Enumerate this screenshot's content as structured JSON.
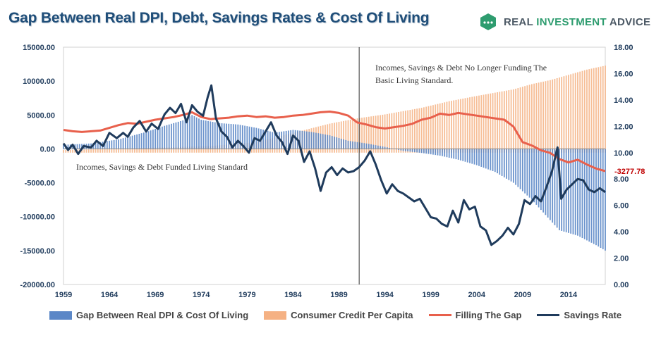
{
  "title": "Gap Between Real DPI, Debt, Savings Rates & Cost Of Living",
  "logo": {
    "text_a": "REAL ",
    "text_b": "INVESTMENT",
    "text_c": " ADVICE",
    "icon": "growth-badge-icon"
  },
  "colors": {
    "gap": "#5b87c7",
    "credit": "#f5b183",
    "fill": "#e8604c",
    "savings": "#1f3b5c",
    "title": "#1f4e79",
    "last_label": "#c00000"
  },
  "chart_data": {
    "type": "bar",
    "left_axis": {
      "min": -20000,
      "max": 15000,
      "ticks": [
        "15000.00",
        "10000.00",
        "5000.00",
        "0.00",
        "-5000.00",
        "-10000.00",
        "-15000.00",
        "-20000.00"
      ]
    },
    "right_axis": {
      "min": 0,
      "max": 18,
      "ticks": [
        "18.00",
        "16.00",
        "14.00",
        "12.00",
        "10.00",
        "8.00",
        "6.00",
        "4.00",
        "2.00",
        "0.00"
      ]
    },
    "x_axis": {
      "min": 1959,
      "max": 2018,
      "ticks": [
        "1959",
        "1964",
        "1969",
        "1974",
        "1979",
        "1984",
        "1989",
        "1994",
        "1999",
        "2004",
        "2009",
        "2014"
      ]
    },
    "divider_year": 1991.2,
    "annotations": [
      {
        "lines": [
          "Incomes, Savings & Debt No Longer Funding The",
          "Basic Living Standard."
        ]
      },
      {
        "lines": [
          "Incomes, Savings & Debt Funded Living Standard"
        ]
      }
    ],
    "last_value_label": "-3277.78",
    "series": [
      {
        "name": "Gap Between Real DPI & Cost Of Living",
        "type": "bar",
        "axis": "left",
        "points": [
          [
            1959,
            600
          ],
          [
            1962,
            800
          ],
          [
            1965,
            1400
          ],
          [
            1968,
            2500
          ],
          [
            1970,
            3400
          ],
          [
            1972,
            4200
          ],
          [
            1973,
            5000
          ],
          [
            1974,
            4300
          ],
          [
            1976,
            3800
          ],
          [
            1978,
            3600
          ],
          [
            1980,
            3100
          ],
          [
            1982,
            2400
          ],
          [
            1984,
            2800
          ],
          [
            1986,
            2500
          ],
          [
            1988,
            2000
          ],
          [
            1990,
            1200
          ],
          [
            1992,
            800
          ],
          [
            1994,
            300
          ],
          [
            1996,
            -300
          ],
          [
            1998,
            -600
          ],
          [
            2000,
            -1000
          ],
          [
            2002,
            -1600
          ],
          [
            2004,
            -2400
          ],
          [
            2006,
            -3400
          ],
          [
            2008,
            -5000
          ],
          [
            2010,
            -7500
          ],
          [
            2012,
            -10500
          ],
          [
            2013,
            -12000
          ],
          [
            2015,
            -12800
          ],
          [
            2017,
            -14200
          ],
          [
            2018,
            -15000
          ]
        ]
      },
      {
        "name": "Consumer Credit Per Capita",
        "type": "bar",
        "axis": "right",
        "points": [
          [
            1959,
            10.2
          ],
          [
            1965,
            10.3
          ],
          [
            1970,
            10.4
          ],
          [
            1975,
            10.5
          ],
          [
            1980,
            10.8
          ],
          [
            1984,
            11.5
          ],
          [
            1988,
            12.2
          ],
          [
            1991,
            12.6
          ],
          [
            1994,
            12.9
          ],
          [
            1998,
            13.4
          ],
          [
            2001,
            13.9
          ],
          [
            2004,
            14.3
          ],
          [
            2008,
            14.8
          ],
          [
            2010,
            15.2
          ],
          [
            2012,
            15.5
          ],
          [
            2014,
            15.9
          ],
          [
            2016,
            16.3
          ],
          [
            2018,
            16.6
          ]
        ]
      },
      {
        "name": "Filling The Gap",
        "type": "line",
        "axis": "left",
        "points": [
          [
            1959,
            2800
          ],
          [
            1960,
            2600
          ],
          [
            1961,
            2500
          ],
          [
            1962,
            2600
          ],
          [
            1963,
            2700
          ],
          [
            1964,
            3100
          ],
          [
            1965,
            3500
          ],
          [
            1966,
            3800
          ],
          [
            1967,
            3700
          ],
          [
            1968,
            4000
          ],
          [
            1969,
            4300
          ],
          [
            1970,
            4500
          ],
          [
            1971,
            4700
          ],
          [
            1972,
            5000
          ],
          [
            1973,
            5400
          ],
          [
            1974,
            4700
          ],
          [
            1975,
            4400
          ],
          [
            1976,
            4500
          ],
          [
            1977,
            4600
          ],
          [
            1978,
            4800
          ],
          [
            1979,
            4900
          ],
          [
            1980,
            4700
          ],
          [
            1981,
            4800
          ],
          [
            1982,
            4600
          ],
          [
            1983,
            4700
          ],
          [
            1984,
            4900
          ],
          [
            1985,
            5000
          ],
          [
            1986,
            5200
          ],
          [
            1987,
            5400
          ],
          [
            1988,
            5500
          ],
          [
            1989,
            5300
          ],
          [
            1990,
            4900
          ],
          [
            1991,
            3900
          ],
          [
            1992,
            3600
          ],
          [
            1993,
            3200
          ],
          [
            1994,
            3000
          ],
          [
            1995,
            3200
          ],
          [
            1996,
            3400
          ],
          [
            1997,
            3700
          ],
          [
            1998,
            4300
          ],
          [
            1999,
            4600
          ],
          [
            2000,
            5200
          ],
          [
            2001,
            5000
          ],
          [
            2002,
            5300
          ],
          [
            2003,
            5100
          ],
          [
            2004,
            4900
          ],
          [
            2005,
            4700
          ],
          [
            2006,
            4500
          ],
          [
            2007,
            4300
          ],
          [
            2008,
            3300
          ],
          [
            2009,
            1000
          ],
          [
            2010,
            500
          ],
          [
            2011,
            -200
          ],
          [
            2012,
            -600
          ],
          [
            2013,
            -1500
          ],
          [
            2014,
            -2000
          ],
          [
            2015,
            -1600
          ],
          [
            2016,
            -2300
          ],
          [
            2017,
            -2900
          ],
          [
            2018,
            -3277.78
          ]
        ]
      },
      {
        "name": "Savings Rate",
        "type": "line",
        "axis": "right",
        "points": [
          [
            1959,
            10.7
          ],
          [
            1959.5,
            10.2
          ],
          [
            1960,
            10.6
          ],
          [
            1960.6,
            9.9
          ],
          [
            1961.2,
            10.5
          ],
          [
            1962,
            10.4
          ],
          [
            1962.6,
            10.9
          ],
          [
            1963.3,
            10.5
          ],
          [
            1964,
            11.5
          ],
          [
            1964.8,
            11.1
          ],
          [
            1965.5,
            11.5
          ],
          [
            1966,
            11.2
          ],
          [
            1966.6,
            11.9
          ],
          [
            1967.3,
            12.4
          ],
          [
            1968,
            11.6
          ],
          [
            1968.6,
            12.2
          ],
          [
            1969.3,
            11.8
          ],
          [
            1970,
            12.9
          ],
          [
            1970.6,
            13.4
          ],
          [
            1971.2,
            13.0
          ],
          [
            1971.8,
            13.7
          ],
          [
            1972.4,
            12.3
          ],
          [
            1973,
            13.6
          ],
          [
            1973.6,
            13.1
          ],
          [
            1974.2,
            12.8
          ],
          [
            1974.7,
            14.2
          ],
          [
            1975.1,
            15.1
          ],
          [
            1975.6,
            12.6
          ],
          [
            1976.2,
            11.6
          ],
          [
            1976.8,
            11.2
          ],
          [
            1977.4,
            10.4
          ],
          [
            1978,
            10.9
          ],
          [
            1978.6,
            10.5
          ],
          [
            1979.2,
            10.0
          ],
          [
            1979.8,
            11.1
          ],
          [
            1980.4,
            10.9
          ],
          [
            1981,
            11.6
          ],
          [
            1981.6,
            12.3
          ],
          [
            1982.2,
            11.3
          ],
          [
            1982.8,
            10.8
          ],
          [
            1983.4,
            9.9
          ],
          [
            1984,
            11.3
          ],
          [
            1984.6,
            10.9
          ],
          [
            1985.2,
            9.3
          ],
          [
            1985.8,
            10.1
          ],
          [
            1986.4,
            8.8
          ],
          [
            1987,
            7.1
          ],
          [
            1987.6,
            8.5
          ],
          [
            1988.2,
            8.9
          ],
          [
            1988.8,
            8.3
          ],
          [
            1989.4,
            8.8
          ],
          [
            1990,
            8.5
          ],
          [
            1990.6,
            8.6
          ],
          [
            1991.2,
            8.9
          ],
          [
            1991.8,
            9.4
          ],
          [
            1992.4,
            10.1
          ],
          [
            1993,
            9.1
          ],
          [
            1993.6,
            7.9
          ],
          [
            1994.2,
            6.9
          ],
          [
            1994.8,
            7.6
          ],
          [
            1995.4,
            7.1
          ],
          [
            1996,
            6.9
          ],
          [
            1996.6,
            6.6
          ],
          [
            1997.2,
            6.3
          ],
          [
            1997.8,
            6.5
          ],
          [
            1998.4,
            5.8
          ],
          [
            1999,
            5.1
          ],
          [
            1999.6,
            5.0
          ],
          [
            2000.2,
            4.6
          ],
          [
            2000.8,
            4.4
          ],
          [
            2001.4,
            5.6
          ],
          [
            2002,
            4.7
          ],
          [
            2002.6,
            6.4
          ],
          [
            2003.2,
            5.7
          ],
          [
            2003.8,
            5.9
          ],
          [
            2004.4,
            4.4
          ],
          [
            2005,
            4.1
          ],
          [
            2005.6,
            3.0
          ],
          [
            2006.2,
            3.3
          ],
          [
            2006.8,
            3.7
          ],
          [
            2007.4,
            4.3
          ],
          [
            2008,
            3.8
          ],
          [
            2008.6,
            4.6
          ],
          [
            2009.2,
            6.4
          ],
          [
            2009.8,
            6.1
          ],
          [
            2010.4,
            6.7
          ],
          [
            2011,
            6.3
          ],
          [
            2011.6,
            7.4
          ],
          [
            2012.2,
            8.6
          ],
          [
            2012.8,
            10.4
          ],
          [
            2013.2,
            6.5
          ],
          [
            2013.8,
            7.2
          ],
          [
            2014.4,
            7.6
          ],
          [
            2015,
            8.0
          ],
          [
            2015.6,
            7.9
          ],
          [
            2016.2,
            7.2
          ],
          [
            2016.8,
            7.0
          ],
          [
            2017.4,
            7.3
          ],
          [
            2018,
            7.0
          ]
        ]
      }
    ]
  }
}
